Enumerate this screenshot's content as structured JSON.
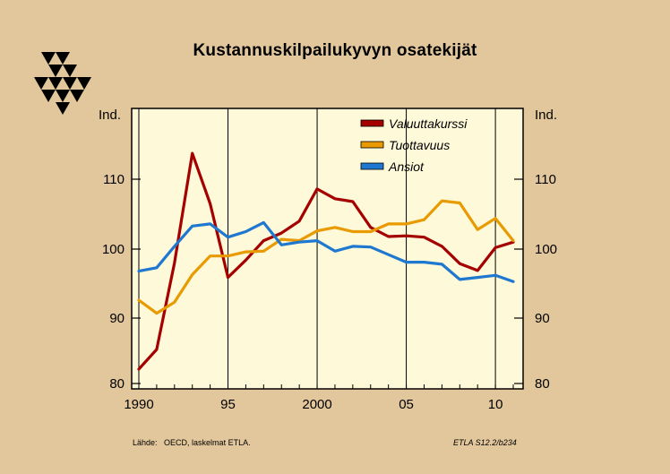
{
  "title": "Kustannuskilpailukyvyn osatekijät",
  "footer": {
    "source_label": "Lähde:",
    "source_text": "OECD, laskelmat ETLA.",
    "code": "ETLA S12.2/b234"
  },
  "chart_data": {
    "type": "line",
    "title": "Kustannuskilpailukyvyn osatekijät",
    "ylabel_left": "Ind.",
    "ylabel_right": "Ind.",
    "xlim": [
      1990,
      2011
    ],
    "ylim": [
      80,
      120
    ],
    "yticks": [
      80,
      90,
      100,
      110
    ],
    "xticks": [
      {
        "value": 1990,
        "label": "1990"
      },
      {
        "value": 1995,
        "label": "95"
      },
      {
        "value": 2000,
        "label": "2000"
      },
      {
        "value": 2005,
        "label": "05"
      },
      {
        "value": 2010,
        "label": "10"
      }
    ],
    "grid": "vertical",
    "legend_position": "top-right",
    "x": [
      1990,
      1991,
      1992,
      1993,
      1994,
      1995,
      1996,
      1997,
      1998,
      1999,
      2000,
      2001,
      2002,
      2003,
      2004,
      2005,
      2006,
      2007,
      2008,
      2009,
      2010,
      2011
    ],
    "series": [
      {
        "name": "Valuuttakurssi",
        "color": "#a40000",
        "values": [
          82.2,
          85.2,
          98.0,
          113.7,
          106.5,
          95.9,
          98.4,
          101.2,
          102.3,
          104.0,
          108.6,
          107.2,
          106.8,
          103.1,
          101.8,
          101.9,
          101.7,
          100.4,
          97.9,
          96.9,
          100.2,
          101.0
        ]
      },
      {
        "name": "Tuottavuus",
        "color": "#e89a00",
        "values": [
          92.6,
          90.7,
          92.3,
          96.3,
          99.0,
          99.0,
          99.6,
          99.7,
          101.4,
          101.2,
          102.6,
          103.1,
          102.5,
          102.5,
          103.6,
          103.6,
          104.2,
          106.9,
          106.6,
          102.8,
          104.4,
          101.2
        ]
      },
      {
        "name": "Ansiot",
        "color": "#1f78d0",
        "values": [
          96.8,
          97.3,
          100.4,
          103.3,
          103.6,
          101.7,
          102.5,
          103.8,
          100.6,
          101.0,
          101.2,
          99.7,
          100.4,
          100.3,
          99.2,
          98.1,
          98.1,
          97.8,
          95.6,
          95.9,
          96.2,
          95.3
        ]
      }
    ]
  }
}
